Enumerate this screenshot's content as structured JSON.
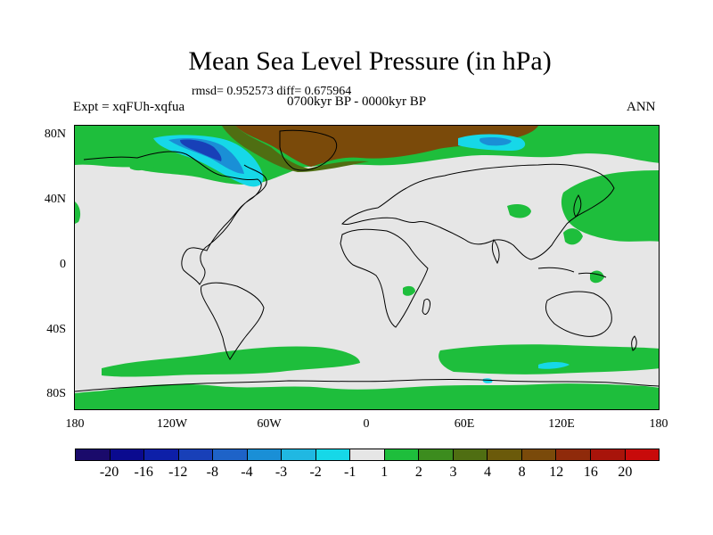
{
  "title": "Mean Sea Level Pressure (in hPa)",
  "stats": "rmsd= 0.952573 diff= 0.675964",
  "period": "0700kyr BP - 0000kyr BP",
  "expt": "Expt = xqFUh-xqfua",
  "season": "ANN",
  "lat_labels": [
    "80N",
    "40N",
    "0",
    "40S",
    "80S"
  ],
  "lon_labels": [
    "180",
    "120W",
    "60W",
    "0",
    "60E",
    "120E",
    "180"
  ],
  "colorbar": {
    "colors": [
      "#1a0a6b",
      "#0a0a8f",
      "#0d1fa8",
      "#1840b8",
      "#1e63c8",
      "#1a8fd6",
      "#20b8e2",
      "#16d8e8",
      "#e6e6e6",
      "#1ebe3c",
      "#3c8c1e",
      "#4f6e12",
      "#6b5a0a",
      "#7a4a0a",
      "#8f2a0a",
      "#a8140a",
      "#c80a0a"
    ],
    "labels": [
      "-20",
      "-16",
      "-12",
      "-8",
      "-4",
      "-3",
      "-2",
      "-1",
      "1",
      "2",
      "3",
      "4",
      "8",
      "12",
      "16",
      "20"
    ]
  },
  "map": {
    "ocean_color": "#e6e6e6",
    "coast_color": "#000000",
    "region_colors": {
      "brown": "#7a4a0a",
      "dark_olive": "#4f6e12",
      "green": "#1ebe3c",
      "cyan": "#16d8e8",
      "light_blue": "#20b8e2",
      "blue": "#1a8fd6"
    }
  }
}
